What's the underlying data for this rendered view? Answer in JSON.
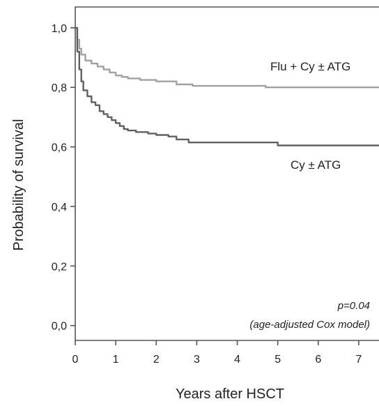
{
  "chart_data": {
    "type": "line",
    "xlabel": "Years after HSCT",
    "ylabel": "Probability of survival",
    "xlim": [
      0,
      7.5
    ],
    "ylim": [
      -0.05,
      1.07
    ],
    "xticks": [
      0,
      1,
      2,
      3,
      4,
      5,
      6,
      7
    ],
    "xtick_labels": [
      "0",
      "1",
      "2",
      "3",
      "4",
      "5",
      "6",
      "7"
    ],
    "yticks": [
      0,
      0.2,
      0.4,
      0.6,
      0.8,
      1.0
    ],
    "ytick_labels": [
      "0,0",
      "0,2",
      "0,4",
      "0,6",
      "0,8",
      "1,0"
    ],
    "grid": false,
    "series": [
      {
        "name": "Flu + Cy ± ATG",
        "color": "#a0a0a0",
        "x": [
          0,
          0.05,
          0.1,
          0.15,
          0.25,
          0.4,
          0.55,
          0.7,
          0.85,
          1.0,
          1.15,
          1.3,
          1.6,
          2.0,
          2.5,
          2.9,
          3.5,
          4.0,
          4.7,
          5.0,
          6.0,
          7.5
        ],
        "y": [
          1.0,
          0.96,
          0.93,
          0.91,
          0.89,
          0.88,
          0.87,
          0.86,
          0.85,
          0.84,
          0.835,
          0.83,
          0.825,
          0.82,
          0.81,
          0.805,
          0.805,
          0.805,
          0.8,
          0.8,
          0.8,
          0.8
        ]
      },
      {
        "name": "Cy ± ATG",
        "color": "#606060",
        "x": [
          0,
          0.05,
          0.1,
          0.15,
          0.2,
          0.3,
          0.4,
          0.5,
          0.6,
          0.7,
          0.8,
          0.9,
          1.0,
          1.1,
          1.2,
          1.3,
          1.5,
          1.8,
          2.0,
          2.3,
          2.5,
          2.8,
          3.5,
          4.0,
          4.7,
          5.0,
          6.0,
          7.5
        ],
        "y": [
          1.0,
          0.92,
          0.86,
          0.82,
          0.79,
          0.77,
          0.75,
          0.74,
          0.72,
          0.71,
          0.7,
          0.69,
          0.68,
          0.67,
          0.66,
          0.655,
          0.65,
          0.645,
          0.64,
          0.635,
          0.625,
          0.615,
          0.615,
          0.615,
          0.615,
          0.605,
          0.605,
          0.605
        ]
      }
    ],
    "series_labels": [
      "Flu + Cy ± ATG",
      "Cy ± ATG"
    ],
    "annotations": [
      "p=0.04",
      "(age-adjusted Cox model)"
    ]
  }
}
